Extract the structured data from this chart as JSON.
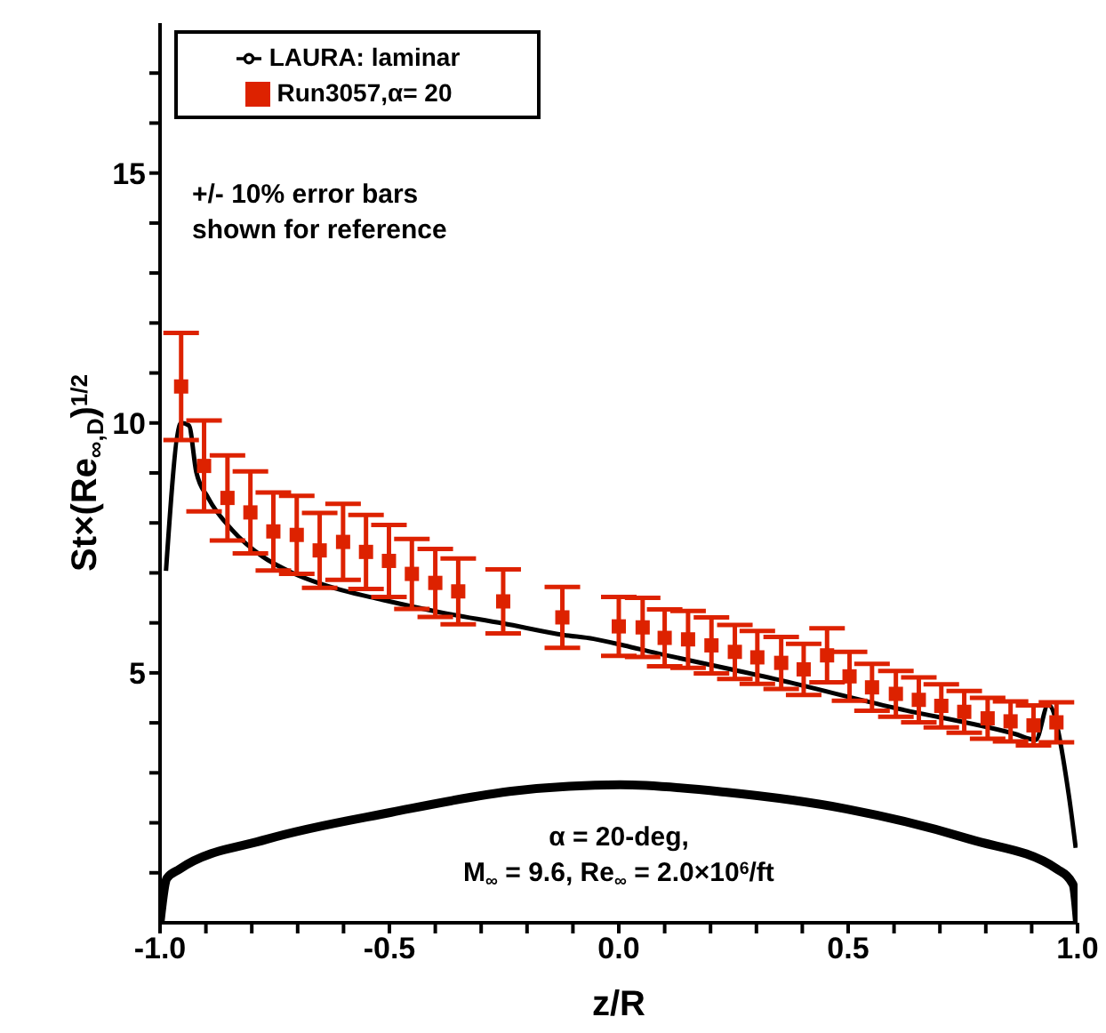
{
  "chart_data": {
    "type": "scatter",
    "xlabel": "z/R",
    "ylabel": "St×(Re$_{∞,D}$)$^{1/2}$",
    "xlim": [
      -1,
      1
    ],
    "ylim": [
      0,
      18
    ],
    "xticks": [
      {
        "value": -1,
        "label": "-1.0"
      },
      {
        "value": -0.9,
        "label": null
      },
      {
        "value": -0.8,
        "label": null
      },
      {
        "value": -0.7,
        "label": null
      },
      {
        "value": -0.6,
        "label": null
      },
      {
        "value": -0.5,
        "label": "-0.5"
      },
      {
        "value": -0.4,
        "label": null
      },
      {
        "value": -0.3,
        "label": null
      },
      {
        "value": -0.2,
        "label": null
      },
      {
        "value": -0.1,
        "label": null
      },
      {
        "value": 0,
        "label": "0.0"
      },
      {
        "value": 0.1,
        "label": null
      },
      {
        "value": 0.2,
        "label": null
      },
      {
        "value": 0.3,
        "label": null
      },
      {
        "value": 0.4,
        "label": null
      },
      {
        "value": 0.5,
        "label": "0.5"
      },
      {
        "value": 0.6,
        "label": null
      },
      {
        "value": 0.7,
        "label": null
      },
      {
        "value": 0.8,
        "label": null
      },
      {
        "value": 0.9,
        "label": null
      },
      {
        "value": 1,
        "label": "1.0"
      }
    ],
    "yticks": [
      {
        "value": 1,
        "label": null
      },
      {
        "value": 2,
        "label": null
      },
      {
        "value": 3,
        "label": null
      },
      {
        "value": 4,
        "label": null
      },
      5,
      {
        "value": 6,
        "label": null
      },
      {
        "value": 7,
        "label": null
      },
      {
        "value": 8,
        "label": null
      },
      {
        "value": 9,
        "label": null
      },
      10,
      {
        "value": 11,
        "label": null
      },
      {
        "value": 12,
        "label": null
      },
      {
        "value": 13,
        "label": null
      },
      {
        "value": 14,
        "label": null
      },
      15,
      {
        "value": 16,
        "label": null
      },
      {
        "value": 17,
        "label": null
      }
    ],
    "legend": "top left",
    "grid": false,
    "annotations": [
      "+/- 10% error bars\nshown for reference",
      "α = 20-deg,\nM$_{∞}$ = 9.6, Re$_{∞}$ = 2.0×10$^{6}$/ft"
    ],
    "series": [
      {
        "type": "line",
        "color": "#000000",
        "marker": "none",
        "line_style": "solid",
        "x": [
          -1.0,
          -0.985,
          -0.958,
          -0.768,
          -0.496,
          -0.225,
          0.003,
          0.236,
          0.495,
          0.766,
          0.956,
          0.99,
          1.0
        ],
        "values": [
          0,
          0.89,
          1.07,
          1.67,
          2.21,
          2.64,
          2.76,
          2.61,
          2.28,
          1.67,
          1.07,
          0.77,
          0
        ]
      },
      {
        "name": "LAURA: laminar",
        "type": "line",
        "color": "#000000",
        "marker": "none",
        "line_style": "solid",
        "x": [
          -0.987,
          -0.954,
          -0.937,
          -0.921,
          -0.895,
          -0.843,
          -0.777,
          -0.711,
          -0.646,
          -0.515,
          -0.383,
          -0.252,
          -0.121,
          -0.055,
          0.011,
          0.076,
          0.339,
          0.601,
          0.863,
          0.909,
          0.936,
          0.981,
          0.996
        ],
        "values": [
          7.04,
          10.0,
          9.95,
          9.02,
          8.5,
          7.86,
          7.33,
          7.0,
          6.77,
          6.46,
          6.2,
          5.99,
          5.76,
          5.68,
          5.55,
          5.41,
          4.88,
          4.3,
          3.78,
          3.66,
          4.36,
          2.55,
          1.5
        ]
      },
      {
        "name": "Run3057,α= 20",
        "type": "scatter",
        "color": "#dd2200",
        "marker": "square",
        "x": [
          -0.954,
          -0.904,
          -0.853,
          -0.803,
          -0.753,
          -0.702,
          -0.652,
          -0.601,
          -0.551,
          -0.501,
          -0.451,
          -0.4,
          -0.35,
          -0.252,
          -0.123,
          0.0,
          0.052,
          0.1,
          0.151,
          0.202,
          0.253,
          0.302,
          0.354,
          0.403,
          0.454,
          0.503,
          0.552,
          0.604,
          0.654,
          0.703,
          0.753,
          0.804,
          0.854,
          0.904,
          0.954
        ],
        "values": [
          10.73,
          9.14,
          8.5,
          8.21,
          7.83,
          7.76,
          7.45,
          7.62,
          7.42,
          7.24,
          6.98,
          6.8,
          6.63,
          6.43,
          6.11,
          5.93,
          5.91,
          5.7,
          5.67,
          5.55,
          5.42,
          5.31,
          5.2,
          5.07,
          5.35,
          4.93,
          4.71,
          4.58,
          4.46,
          4.34,
          4.22,
          4.09,
          4.03,
          3.95,
          4.01
        ],
        "errors": [
          1.07,
          0.91,
          0.85,
          0.82,
          0.78,
          0.78,
          0.75,
          0.76,
          0.74,
          0.72,
          0.7,
          0.68,
          0.66,
          0.64,
          0.61,
          0.59,
          0.59,
          0.57,
          0.57,
          0.56,
          0.54,
          0.53,
          0.52,
          0.51,
          0.54,
          0.49,
          0.47,
          0.46,
          0.45,
          0.43,
          0.42,
          0.41,
          0.4,
          0.4,
          0.4
        ]
      }
    ]
  }
}
